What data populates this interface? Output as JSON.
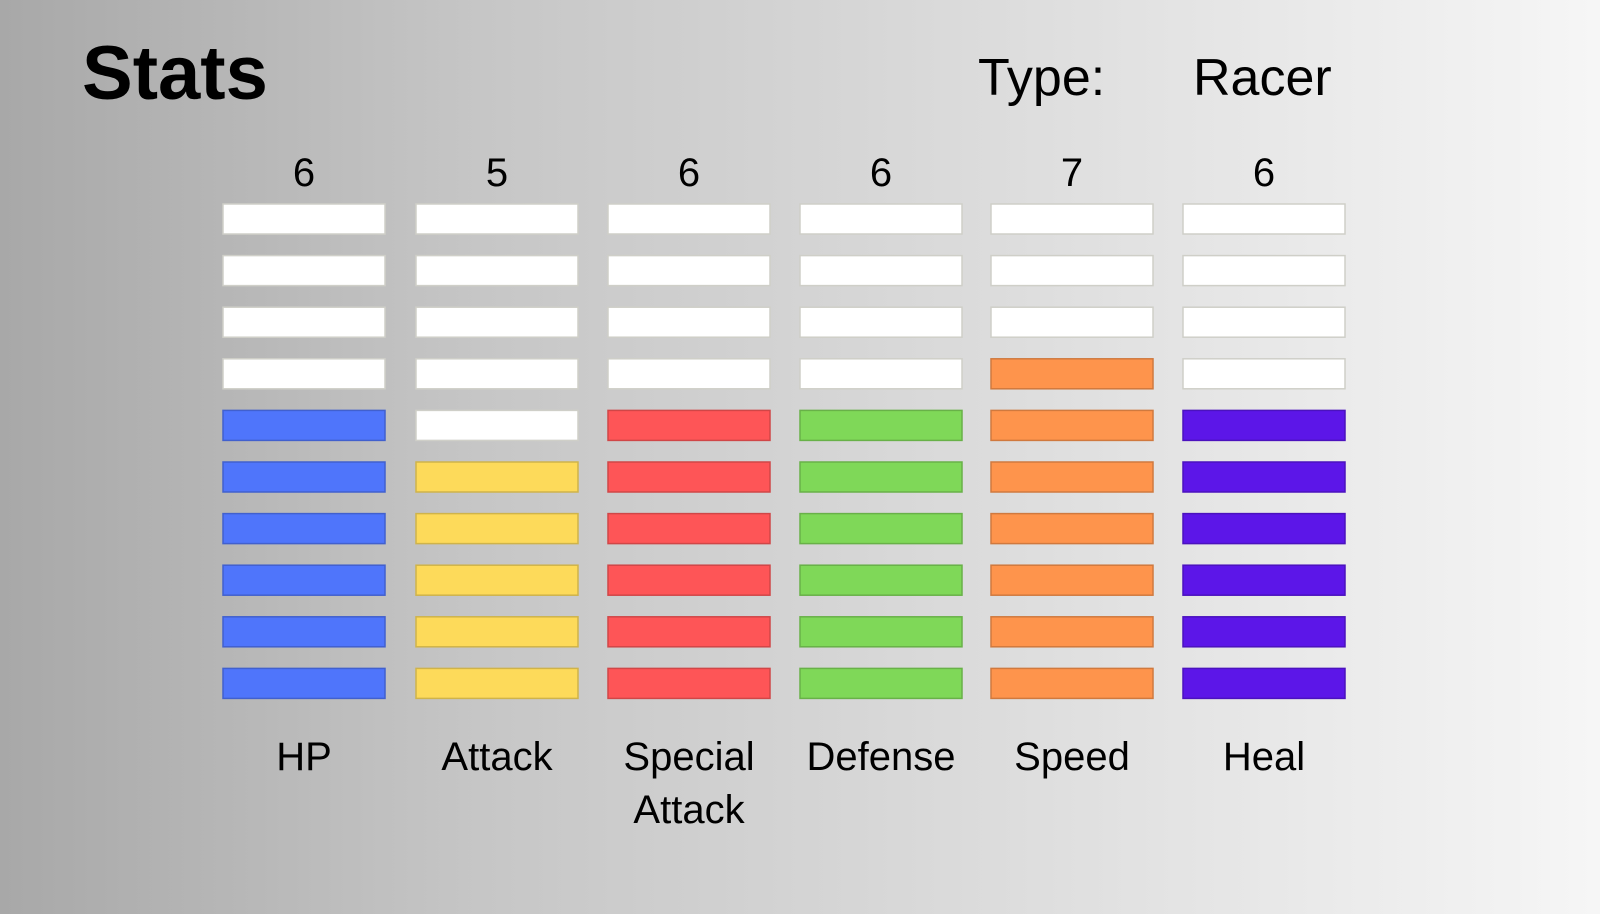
{
  "header": {
    "title": "Stats",
    "type_label": "Type:",
    "type_value": "Racer"
  },
  "chart_data": {
    "type": "bar",
    "max_segments": 10,
    "categories": [
      {
        "label": "HP",
        "value": 6,
        "color": "#4f75fb"
      },
      {
        "label": "Attack",
        "value": 5,
        "color": "#fdda5a"
      },
      {
        "label": "Special Attack",
        "value": 6,
        "color": "#fe5557"
      },
      {
        "label": "Defense",
        "value": 6,
        "color": "#7fd858"
      },
      {
        "label": "Speed",
        "value": 7,
        "color": "#fe944c"
      },
      {
        "label": "Heal",
        "value": 6,
        "color": "#5c16e8"
      }
    ],
    "empty_color": "#ffffff"
  }
}
